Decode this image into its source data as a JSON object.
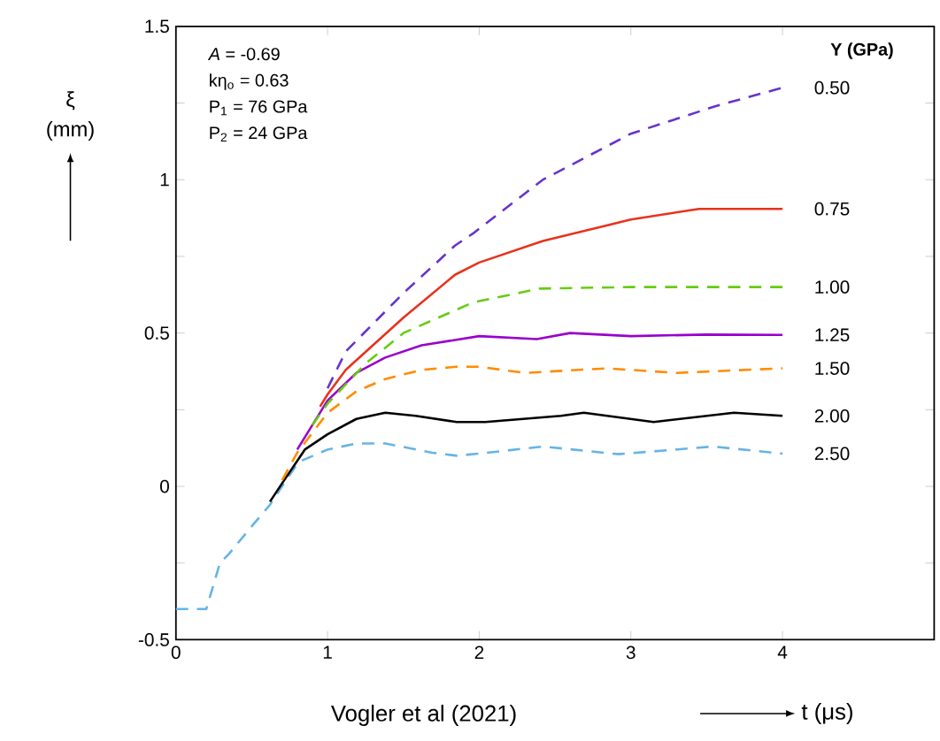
{
  "chart_data": {
    "type": "line",
    "xlabel": "t (μs)",
    "ylabel": "ξ (mm)",
    "legend_title": "Y (GPa)",
    "annotations": [
      "*A* = -0.69",
      "kη$_{o}$ = 0.63",
      "P$_{1}$ = 76 GPa",
      "P$_{2}$ = 24 GPa",
      "Vogler et al (2021)"
    ],
    "xlim": [
      0,
      5
    ],
    "ylim": [
      -0.5,
      1.5
    ],
    "xticks": [
      0,
      1,
      2,
      3,
      4,
      {
        "value": 5,
        "label": null
      }
    ],
    "yticks": [
      -0.5,
      {
        "value": -0.25,
        "label": null
      },
      0,
      {
        "value": 0.25,
        "label": null
      },
      0.5,
      {
        "value": 0.75,
        "label": null
      },
      1,
      {
        "value": 1.25,
        "label": null
      },
      1.5
    ],
    "series": [
      {
        "name": "0.50",
        "color": "#6633cc",
        "line_style": "dashed",
        "x": [
          1.0,
          1.12,
          1.5,
          1.84,
          1.96,
          2.42,
          3.0,
          3.56,
          4.0
        ],
        "values": [
          0.32,
          0.44,
          0.63,
          0.785,
          0.825,
          1.0,
          1.15,
          1.24,
          1.3
        ]
      },
      {
        "name": "0.75",
        "color": "#e8321e",
        "line_style": "solid",
        "x": [
          0.95,
          1.0,
          1.12,
          1.5,
          1.84,
          2.0,
          2.42,
          3.0,
          3.45,
          4.0
        ],
        "values": [
          0.26,
          0.3,
          0.38,
          0.55,
          0.69,
          0.73,
          0.8,
          0.87,
          0.905,
          0.905
        ]
      },
      {
        "name": "1.00",
        "color": "#66cc11",
        "line_style": "dashed",
        "x": [
          0.9,
          1.0,
          1.25,
          1.5,
          1.96,
          2.4,
          3.0,
          4.0
        ],
        "values": [
          0.2,
          0.27,
          0.4,
          0.5,
          0.6,
          0.645,
          0.65,
          0.65
        ]
      },
      {
        "name": "1.25",
        "color": "#9900cc",
        "line_style": "solid",
        "x": [
          0.8,
          1.0,
          1.19,
          1.38,
          1.62,
          2.0,
          2.38,
          2.6,
          3.0,
          3.5,
          4.0
        ],
        "values": [
          0.12,
          0.28,
          0.37,
          0.42,
          0.46,
          0.49,
          0.48,
          0.5,
          0.49,
          0.495,
          0.494
        ]
      },
      {
        "name": "1.50",
        "color": "#ff8c00",
        "line_style": "dashed",
        "x": [
          0.7,
          0.8,
          1.0,
          1.19,
          1.38,
          1.62,
          1.85,
          2.0,
          2.3,
          2.84,
          3.3,
          4.0
        ],
        "values": [
          0.02,
          0.11,
          0.24,
          0.31,
          0.35,
          0.38,
          0.39,
          0.39,
          0.37,
          0.385,
          0.37,
          0.385
        ]
      },
      {
        "name": "2.00",
        "color": "#000000",
        "line_style": "solid",
        "x": [
          0.62,
          0.7,
          0.85,
          1.0,
          1.19,
          1.38,
          1.58,
          1.85,
          2.04,
          2.54,
          2.69,
          3.15,
          3.68,
          4.0
        ],
        "values": [
          -0.05,
          0.01,
          0.12,
          0.17,
          0.22,
          0.24,
          0.23,
          0.21,
          0.21,
          0.23,
          0.24,
          0.21,
          0.24,
          0.23
        ]
      },
      {
        "name": "2.50",
        "color": "#66b3e6",
        "line_style": "dashed",
        "x": [
          0,
          0.2,
          0.29,
          0.35,
          0.5,
          0.62,
          0.7,
          0.81,
          1.0,
          1.19,
          1.38,
          1.69,
          1.85,
          2.0,
          2.42,
          2.92,
          3.54,
          4.0
        ],
        "values": [
          -0.4,
          -0.4,
          -0.25,
          -0.22,
          -0.13,
          -0.06,
          0.0,
          0.08,
          0.12,
          0.14,
          0.14,
          0.11,
          0.1,
          0.107,
          0.13,
          0.105,
          0.13,
          0.107
        ]
      }
    ]
  }
}
